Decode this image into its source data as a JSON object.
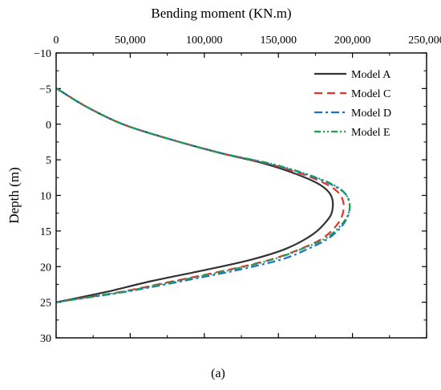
{
  "chart_data": {
    "type": "line",
    "title": "",
    "xlabel": "Bending moment (KN.m)",
    "ylabel": "Depth (m)",
    "xlim": [
      0,
      250000
    ],
    "ylim": [
      -10,
      30
    ],
    "y_inverted": true,
    "x_axis_position": "top",
    "x_ticks": [
      0,
      50000,
      100000,
      150000,
      200000,
      250000
    ],
    "x_tick_labels": [
      "0",
      "50,000",
      "100,000",
      "150,000",
      "200,000",
      "250,000"
    ],
    "y_ticks": [
      -10,
      -5,
      0,
      5,
      10,
      15,
      20,
      25,
      30
    ],
    "y_tick_labels": [
      "−10",
      "−5",
      "0",
      "5",
      "10",
      "15",
      "20",
      "25",
      "30"
    ],
    "grid": false,
    "legend_position": "top-right",
    "caption": "(a)",
    "series": [
      {
        "name": "Model A",
        "color": "#333333",
        "dash": "solid",
        "points": [
          [
            500,
            -5
          ],
          [
            20000,
            -2.5
          ],
          [
            45000,
            0
          ],
          [
            75000,
            2
          ],
          [
            110000,
            4
          ],
          [
            140000,
            5.5
          ],
          [
            162000,
            7
          ],
          [
            178000,
            8.5
          ],
          [
            185500,
            10
          ],
          [
            186500,
            12
          ],
          [
            183000,
            13.5
          ],
          [
            173000,
            15.5
          ],
          [
            155000,
            17.5
          ],
          [
            132000,
            19
          ],
          [
            100000,
            20.5
          ],
          [
            65000,
            22
          ],
          [
            35000,
            23.5
          ],
          [
            12000,
            24.5
          ],
          [
            500,
            25
          ]
        ]
      },
      {
        "name": "Model C",
        "color": "#e8312b",
        "dash": "dashed",
        "points": [
          [
            500,
            -5
          ],
          [
            20000,
            -2.5
          ],
          [
            45000,
            0
          ],
          [
            75000,
            2
          ],
          [
            110000,
            4
          ],
          [
            142000,
            5.5
          ],
          [
            166000,
            7
          ],
          [
            183000,
            8.5
          ],
          [
            192000,
            10
          ],
          [
            194000,
            12
          ],
          [
            190000,
            14
          ],
          [
            180000,
            16
          ],
          [
            165000,
            17.5
          ],
          [
            145000,
            19
          ],
          [
            115000,
            20.5
          ],
          [
            80000,
            22
          ],
          [
            45000,
            23.5
          ],
          [
            15000,
            24.5
          ],
          [
            500,
            25
          ]
        ]
      },
      {
        "name": "Model D",
        "color": "#1f6fd1",
        "dash": "dashdot",
        "points": [
          [
            500,
            -5
          ],
          [
            20000,
            -2.5
          ],
          [
            45000,
            0
          ],
          [
            75000,
            2
          ],
          [
            110000,
            4
          ],
          [
            143000,
            5.5
          ],
          [
            168000,
            7
          ],
          [
            186000,
            8.5
          ],
          [
            196000,
            10
          ],
          [
            198000,
            12
          ],
          [
            194000,
            14
          ],
          [
            184000,
            16
          ],
          [
            170000,
            17.5
          ],
          [
            152000,
            19
          ],
          [
            122000,
            20.5
          ],
          [
            86000,
            22
          ],
          [
            48000,
            23.5
          ],
          [
            16000,
            24.5
          ],
          [
            500,
            25
          ]
        ]
      },
      {
        "name": "Model E",
        "color": "#1aa14f",
        "dash": "dashdotdot",
        "points": [
          [
            500,
            -5
          ],
          [
            20000,
            -2.5
          ],
          [
            45000,
            0
          ],
          [
            75000,
            2
          ],
          [
            110000,
            4
          ],
          [
            144000,
            5.5
          ],
          [
            169000,
            7
          ],
          [
            187000,
            8.5
          ],
          [
            196000,
            10
          ],
          [
            198000,
            12
          ],
          [
            193000,
            14
          ],
          [
            182000,
            16
          ],
          [
            166000,
            17.5
          ],
          [
            146000,
            19
          ],
          [
            117000,
            20.5
          ],
          [
            82000,
            22
          ],
          [
            46000,
            23.5
          ],
          [
            15000,
            24.5
          ],
          [
            500,
            25
          ]
        ]
      }
    ]
  }
}
